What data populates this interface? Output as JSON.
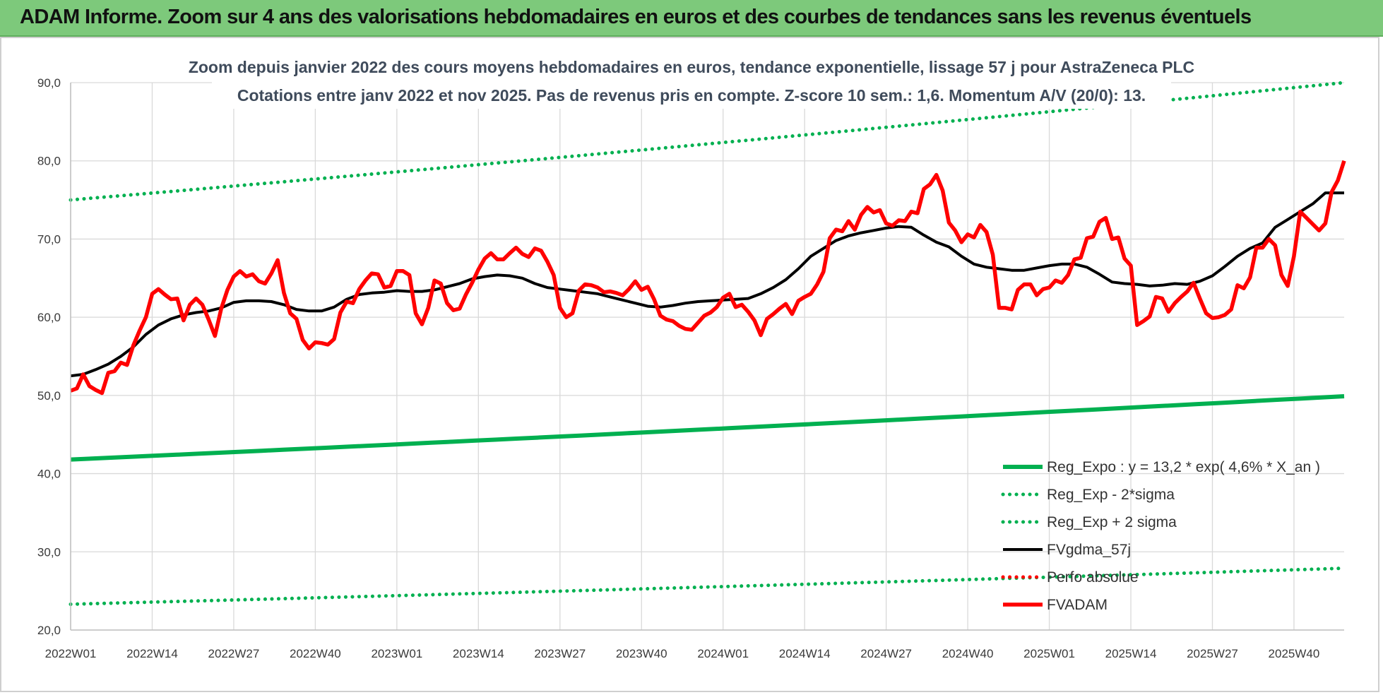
{
  "banner": {
    "title": "ADAM Informe. Zoom sur 4 ans des valorisations hebdomadaires en euros et des courbes de tendances sans les revenus éventuels"
  },
  "colors": {
    "banner_bg": "#7dc97b",
    "trend": "#00b050",
    "moving_average": "#000000",
    "price": "#ff0000"
  },
  "chart_data": {
    "type": "line",
    "title_lines": [
      "Zoom depuis janvier 2022 des cours moyens hebdomadaires en euros, tendance exponentielle, lissage 57 j pour AstraZeneca PLC",
      "Cotations entre janv 2022 et nov 2025. Pas de revenus pris en compte. Z-score 10 sem.: 1,6. Momentum A/V (20/0): 13."
    ],
    "x_unit": "week index from 2022W01",
    "xlim": [
      0,
      203
    ],
    "ylim": [
      20,
      90
    ],
    "y_ticks": [
      "20,0",
      "30,0",
      "40,0",
      "50,0",
      "60,0",
      "70,0",
      "80,0",
      "90,0"
    ],
    "x_tick_labels": [
      "2022W01",
      "2022W14",
      "2022W27",
      "2022W40",
      "2023W01",
      "2023W14",
      "2023W27",
      "2023W40",
      "2024W01",
      "2024W14",
      "2024W27",
      "2024W40",
      "2025W01",
      "2025W14",
      "2025W27",
      "2025W40"
    ],
    "x_tick_positions": [
      0,
      13,
      26,
      39,
      52,
      65,
      78,
      91,
      104,
      117,
      130,
      143,
      156,
      169,
      182,
      195
    ],
    "grid": true,
    "legend_position": "bottom-right",
    "legend": [
      {
        "label": "Reg_Expo : y = 13,2 * exp( 4,6% *  X_an )",
        "style": "solid",
        "color": "#00b050"
      },
      {
        "label": "Reg_Exp - 2*sigma",
        "style": "dotted",
        "color": "#00b050"
      },
      {
        "label": "Reg_Exp + 2 sigma",
        "style": "dotted",
        "color": "#00b050"
      },
      {
        "label": "FVgdma_57j",
        "style": "solid",
        "color": "#000000"
      },
      {
        "label": "Perfo absolue",
        "style": "dotted",
        "color": "#ff0000"
      },
      {
        "label": "FVADAM",
        "style": "solid-thick",
        "color": "#ff0000"
      }
    ],
    "series": [
      {
        "name": "Reg_Expo : y = 13,2 * exp( 4,6% *  X_an )",
        "style": "solid",
        "color": "#00b050",
        "x": [
          0,
          203
        ],
        "values": [
          41.8,
          49.9
        ],
        "curve": "exponential"
      },
      {
        "name": "Reg_Exp - 2*sigma",
        "style": "dotted",
        "color": "#00b050",
        "x": [
          0,
          203
        ],
        "values": [
          23.3,
          27.9
        ],
        "curve": "exponential"
      },
      {
        "name": "Reg_Exp + 2 sigma",
        "style": "dotted",
        "color": "#00b050",
        "x": [
          0,
          203
        ],
        "values": [
          75.0,
          90.0
        ],
        "curve": "exponential"
      },
      {
        "name": "FVgdma_57j",
        "style": "solid",
        "color": "#000000",
        "x": [
          0,
          2,
          4,
          6,
          8,
          10,
          12,
          14,
          16,
          18,
          20,
          22,
          24,
          26,
          28,
          30,
          32,
          34,
          36,
          38,
          40,
          42,
          44,
          46,
          48,
          50,
          52,
          54,
          56,
          58,
          60,
          62,
          64,
          66,
          68,
          70,
          72,
          74,
          76,
          78,
          80,
          82,
          84,
          86,
          88,
          90,
          92,
          94,
          96,
          98,
          100,
          102,
          104,
          106,
          108,
          110,
          112,
          114,
          116,
          118,
          120,
          122,
          124,
          126,
          128,
          130,
          132,
          134,
          136,
          138,
          140,
          142,
          144,
          146,
          148,
          150,
          152,
          154,
          156,
          158,
          160,
          162,
          164,
          166,
          168,
          170,
          172,
          174,
          176,
          178,
          180,
          182,
          184,
          186,
          188,
          190,
          192,
          194,
          196,
          198,
          200,
          203
        ],
        "values": [
          52.5,
          52.7,
          53.3,
          54.0,
          55.0,
          56.2,
          57.8,
          59.0,
          59.8,
          60.3,
          60.6,
          60.8,
          61.2,
          61.9,
          62.1,
          62.1,
          62.0,
          61.6,
          61.0,
          60.8,
          60.8,
          61.3,
          62.3,
          62.9,
          63.1,
          63.2,
          63.4,
          63.3,
          63.3,
          63.5,
          63.9,
          64.3,
          64.9,
          65.2,
          65.4,
          65.3,
          65.0,
          64.3,
          63.8,
          63.6,
          63.4,
          63.2,
          63.0,
          62.6,
          62.2,
          61.8,
          61.4,
          61.3,
          61.5,
          61.8,
          62.0,
          62.1,
          62.2,
          62.3,
          62.4,
          63.0,
          63.8,
          64.8,
          66.2,
          67.8,
          68.8,
          69.8,
          70.4,
          70.8,
          71.1,
          71.4,
          71.6,
          71.5,
          70.5,
          69.6,
          69.0,
          67.8,
          66.8,
          66.4,
          66.2,
          66.0,
          66.0,
          66.3,
          66.6,
          66.8,
          66.8,
          66.4,
          65.5,
          64.5,
          64.3,
          64.2,
          64.0,
          64.1,
          64.3,
          64.2,
          64.6,
          65.3,
          66.5,
          67.8,
          68.8,
          69.5,
          71.5,
          72.5,
          73.5,
          74.5,
          75.9,
          75.9
        ]
      },
      {
        "name": "FVADAM",
        "style": "solid-thick",
        "color": "#ff0000",
        "x": [
          0,
          1,
          2,
          3,
          4,
          5,
          6,
          7,
          8,
          9,
          10,
          11,
          12,
          13,
          14,
          15,
          16,
          17,
          18,
          19,
          20,
          21,
          22,
          23,
          24,
          25,
          26,
          27,
          28,
          29,
          30,
          31,
          32,
          33,
          34,
          35,
          36,
          37,
          38,
          39,
          40,
          41,
          42,
          43,
          44,
          45,
          46,
          47,
          48,
          49,
          50,
          51,
          52,
          53,
          54,
          55,
          56,
          57,
          58,
          59,
          60,
          61,
          62,
          63,
          64,
          65,
          66,
          67,
          68,
          69,
          70,
          71,
          72,
          73,
          74,
          75,
          76,
          77,
          78,
          79,
          80,
          81,
          82,
          83,
          84,
          85,
          86,
          87,
          88,
          89,
          90,
          91,
          92,
          93,
          94,
          95,
          96,
          97,
          98,
          99,
          100,
          101,
          102,
          103,
          104,
          105,
          106,
          107,
          108,
          109,
          110,
          111,
          112,
          113,
          114,
          115,
          116,
          117,
          118,
          119,
          120,
          121,
          122,
          123,
          124,
          125,
          126,
          127,
          128,
          129,
          130,
          131,
          132,
          133,
          134,
          135,
          136,
          137,
          138,
          139,
          140,
          141,
          142,
          143,
          144,
          145,
          146,
          147,
          148,
          149,
          150,
          151,
          152,
          153,
          154,
          155,
          156,
          157,
          158,
          159,
          160,
          161,
          162,
          163,
          164,
          165,
          166,
          167,
          168,
          169,
          170,
          171,
          172,
          173,
          174,
          175,
          176,
          177,
          178,
          179,
          180,
          181,
          182,
          183,
          184,
          185,
          186,
          187,
          188,
          189,
          190,
          191,
          192,
          193,
          194,
          195,
          196,
          197,
          198,
          199,
          200,
          201,
          202,
          203
        ],
        "values": [
          50.6,
          50.9,
          52.7,
          51.2,
          50.7,
          50.3,
          52.9,
          53.1,
          54.2,
          53.9,
          56.4,
          58.3,
          60.0,
          63.0,
          63.6,
          62.9,
          62.3,
          62.4,
          59.6,
          61.6,
          62.4,
          61.6,
          59.7,
          57.6,
          61.1,
          63.5,
          65.2,
          65.9,
          65.2,
          65.5,
          64.6,
          64.3,
          65.6,
          67.3,
          63.1,
          60.5,
          59.8,
          57.1,
          56.0,
          56.8,
          56.7,
          56.5,
          57.2,
          60.6,
          62.0,
          61.8,
          63.6,
          64.7,
          65.6,
          65.5,
          63.8,
          64.0,
          65.9,
          65.9,
          65.4,
          60.5,
          59.1,
          61.2,
          64.7,
          64.3,
          61.8,
          60.9,
          61.1,
          62.9,
          64.4,
          66.1,
          67.5,
          68.2,
          67.4,
          67.4,
          68.2,
          68.9,
          68.1,
          67.7,
          68.8,
          68.5,
          67.1,
          65.4,
          61.2,
          60.0,
          60.5,
          63.4,
          64.2,
          64.1,
          63.8,
          63.2,
          63.3,
          63.1,
          62.8,
          63.6,
          64.6,
          63.5,
          63.9,
          62.3,
          60.2,
          59.7,
          59.5,
          58.9,
          58.5,
          58.4,
          59.3,
          60.2,
          60.6,
          61.3,
          62.5,
          63.0,
          61.3,
          61.6,
          60.7,
          59.6,
          57.7,
          59.8,
          60.4,
          61.1,
          61.7,
          60.4,
          62.1,
          62.6,
          63.0,
          64.2,
          65.8,
          70.1,
          71.2,
          71.0,
          72.3,
          71.2,
          73.1,
          74.1,
          73.4,
          73.7,
          72.0,
          71.7,
          72.4,
          72.3,
          73.5,
          73.3,
          76.4,
          77.0,
          78.2,
          76.2,
          72.1,
          71.1,
          69.6,
          70.6,
          70.2,
          71.8,
          70.9,
          68.0,
          61.2,
          61.2,
          61.0,
          63.5,
          64.2,
          64.2,
          62.8,
          63.6,
          63.8,
          64.7,
          64.4,
          65.4,
          67.4,
          67.6,
          70.1,
          70.3,
          72.2,
          72.7,
          70.0,
          70.2,
          67.5,
          66.6,
          59.0,
          59.5,
          60.1,
          62.6,
          62.4,
          60.7,
          61.8,
          62.6,
          63.3,
          64.4,
          62.4,
          60.5,
          59.9,
          60.0,
          60.3,
          61.0,
          64.1,
          63.7,
          65.1,
          68.9,
          68.9,
          70.0,
          69.2,
          65.4,
          64.0,
          67.8,
          73.5,
          72.7,
          71.9,
          71.1,
          72.0,
          76.0,
          77.5,
          80.0
        ]
      }
    ]
  }
}
